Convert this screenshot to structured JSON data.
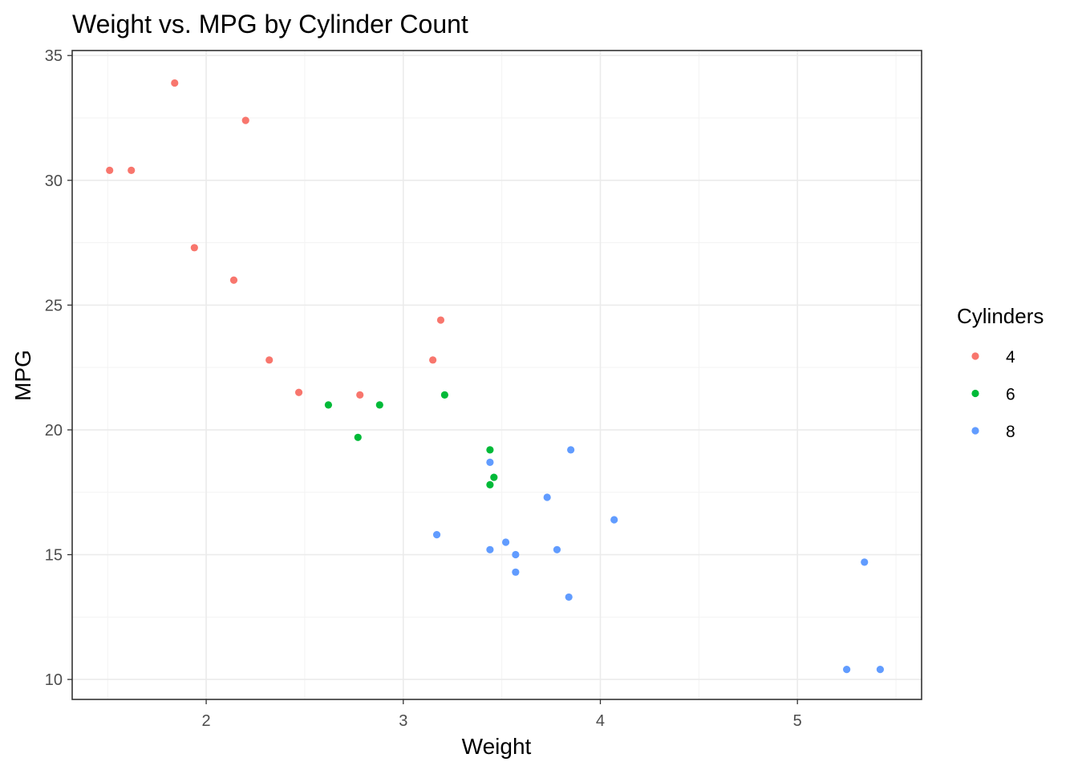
{
  "chart_data": {
    "type": "scatter",
    "title": "Weight vs. MPG by Cylinder Count",
    "xlabel": "Weight",
    "ylabel": "MPG",
    "xlim": [
      1.32,
      5.63
    ],
    "ylim": [
      9.2,
      35.2
    ],
    "x_ticks": [
      2,
      3,
      4,
      5
    ],
    "x_tick_labels": [
      "2",
      "3",
      "4",
      "5"
    ],
    "y_ticks": [
      10,
      15,
      20,
      25,
      30,
      35
    ],
    "y_tick_labels": [
      "10",
      "15",
      "20",
      "25",
      "30",
      "35"
    ],
    "grid": true,
    "legend": {
      "title": "Cylinders",
      "position": "right"
    },
    "series": [
      {
        "name": "4",
        "color": "#F8766D",
        "points": [
          [
            1.51,
            30.4
          ],
          [
            1.62,
            30.4
          ],
          [
            1.84,
            33.9
          ],
          [
            1.94,
            27.3
          ],
          [
            2.14,
            26.0
          ],
          [
            2.2,
            32.4
          ],
          [
            2.32,
            22.8
          ],
          [
            2.47,
            21.5
          ],
          [
            2.78,
            21.4
          ],
          [
            3.15,
            22.8
          ],
          [
            3.19,
            24.4
          ]
        ]
      },
      {
        "name": "6",
        "color": "#00BA38",
        "points": [
          [
            2.62,
            21.0
          ],
          [
            2.77,
            19.7
          ],
          [
            2.88,
            21.0
          ],
          [
            3.21,
            21.4
          ],
          [
            3.44,
            17.8
          ],
          [
            3.44,
            19.2
          ],
          [
            3.46,
            18.1
          ]
        ]
      },
      {
        "name": "8",
        "color": "#619CFF",
        "points": [
          [
            3.17,
            15.8
          ],
          [
            3.44,
            18.7
          ],
          [
            3.44,
            15.2
          ],
          [
            3.52,
            15.5
          ],
          [
            3.57,
            14.3
          ],
          [
            3.57,
            15.0
          ],
          [
            3.73,
            17.3
          ],
          [
            3.78,
            15.2
          ],
          [
            3.84,
            13.3
          ],
          [
            3.85,
            19.2
          ],
          [
            4.07,
            16.4
          ],
          [
            5.25,
            10.4
          ],
          [
            5.34,
            14.7
          ],
          [
            5.42,
            10.4
          ]
        ]
      }
    ]
  }
}
